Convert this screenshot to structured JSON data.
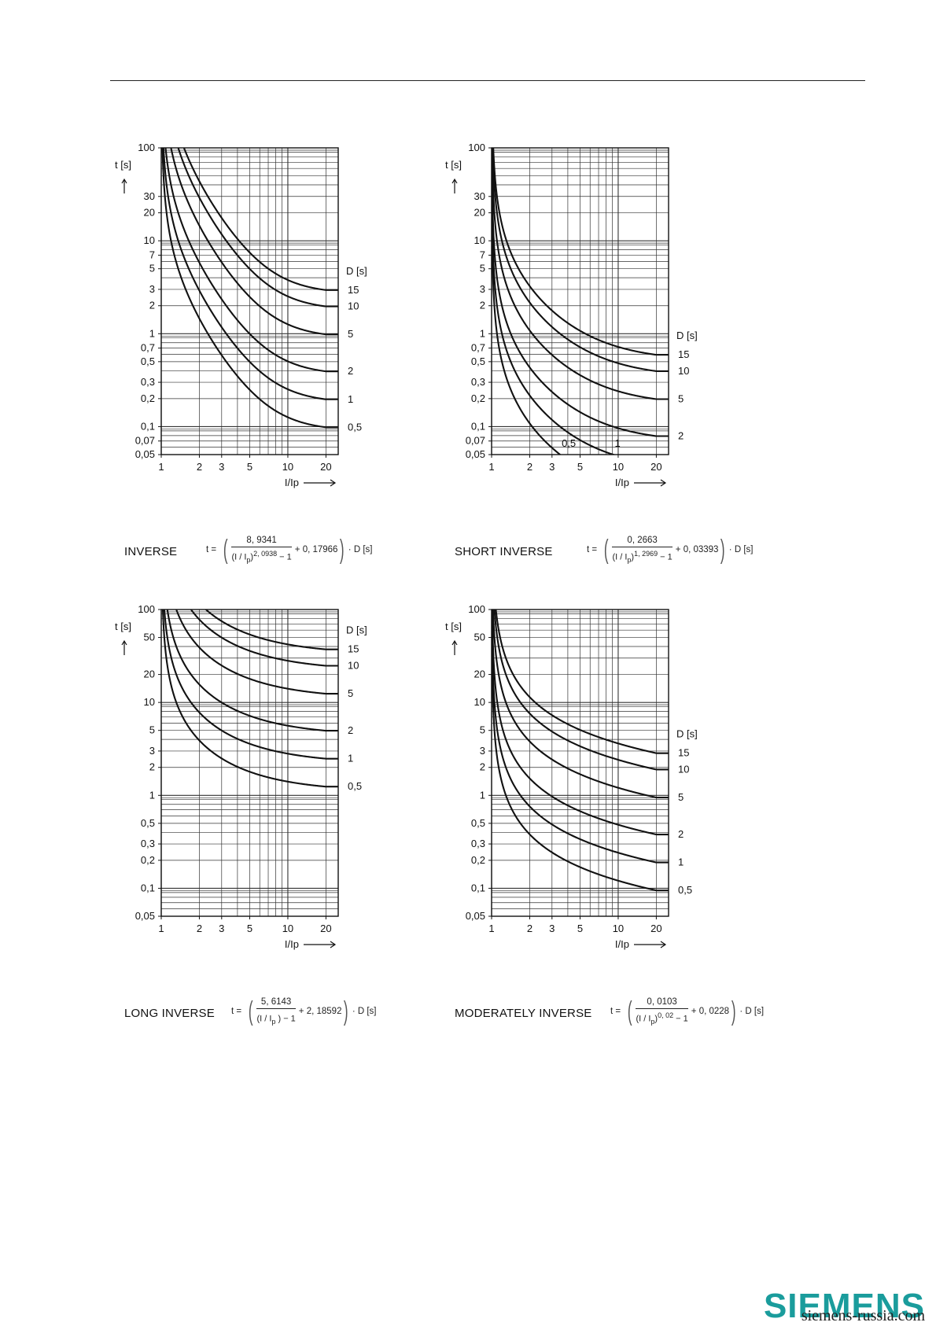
{
  "charts": [
    {
      "name": "INVERSE",
      "formula": {
        "prefix": "t =",
        "num": "8, 9341",
        "den_base": "(I / I",
        "den_sub": "p",
        "den_exp": "2, 0938",
        "den_tail": "− 1",
        "tail": "+ 0, 17966",
        "mult": "· D [s]"
      }
    },
    {
      "name": "SHORT INVERSE",
      "formula": {
        "prefix": "t =",
        "num": "0, 2663",
        "den_base": "(I / I",
        "den_sub": "p",
        "den_exp": "1, 2969",
        "den_tail": "− 1",
        "tail": "+ 0, 03393",
        "mult": "· D [s]"
      }
    },
    {
      "name": "LONG INVERSE",
      "formula": {
        "prefix": "t =",
        "num": "5, 6143",
        "den_base": "(I / I",
        "den_sub": "p",
        "den_exp": "",
        "den_tail": ") − 1",
        "tail": "+ 2, 18592",
        "mult": "· D [s]"
      }
    },
    {
      "name": "MODERATELY INVERSE",
      "formula": {
        "prefix": "t =",
        "num": "0, 0103",
        "den_base": "(I / I",
        "den_sub": "p",
        "den_exp": "0, 02",
        "den_tail": "− 1",
        "tail": "+ 0, 0228",
        "mult": "· D [s]"
      }
    }
  ],
  "chart_data": [
    {
      "type": "line",
      "title": "INVERSE",
      "xlabel": "I/Ip",
      "ylabel": "t [s]",
      "legend_title": "D [s]",
      "x_scale": "log",
      "y_scale": "log",
      "xlim": [
        1,
        25
      ],
      "ylim": [
        0.05,
        100
      ],
      "x_ticks": [
        1,
        2,
        3,
        5,
        10,
        20
      ],
      "x_tick_labels": [
        "1",
        "2",
        "3",
        "5",
        "10",
        "20"
      ],
      "y_ticks": [
        0.05,
        0.07,
        0.1,
        0.2,
        0.3,
        0.5,
        0.7,
        1,
        2,
        3,
        5,
        7,
        10,
        20,
        30,
        100
      ],
      "y_tick_labels": [
        "0,05",
        "0,07",
        "0,1",
        "0,2",
        "0,3",
        "0,5",
        "0,7",
        "1",
        "2",
        "3",
        "5",
        "7",
        "10",
        "20",
        "30",
        "100"
      ],
      "grid": true,
      "curve_params": {
        "a": 8.9341,
        "p": 2.0938,
        "b": 0.17966
      },
      "series": [
        {
          "name": "15",
          "D": 15
        },
        {
          "name": "10",
          "D": 10
        },
        {
          "name": "5",
          "D": 5
        },
        {
          "name": "2",
          "D": 2
        },
        {
          "name": "1",
          "D": 1
        },
        {
          "name": "0,5",
          "D": 0.5
        }
      ]
    },
    {
      "type": "line",
      "title": "SHORT INVERSE",
      "xlabel": "I/Ip",
      "ylabel": "t [s]",
      "legend_title": "D [s]",
      "x_scale": "log",
      "y_scale": "log",
      "xlim": [
        1,
        25
      ],
      "ylim": [
        0.05,
        100
      ],
      "x_ticks": [
        1,
        2,
        3,
        5,
        10,
        20
      ],
      "x_tick_labels": [
        "1",
        "2",
        "3",
        "5",
        "10",
        "20"
      ],
      "y_ticks": [
        0.05,
        0.07,
        0.1,
        0.2,
        0.3,
        0.5,
        0.7,
        1,
        2,
        3,
        5,
        7,
        10,
        20,
        30,
        100
      ],
      "y_tick_labels": [
        "0,05",
        "0,07",
        "0,1",
        "0,2",
        "0,3",
        "0,5",
        "0,7",
        "1",
        "2",
        "3",
        "5",
        "7",
        "10",
        "20",
        "30",
        "100"
      ],
      "grid": true,
      "curve_params": {
        "a": 0.2663,
        "p": 1.2969,
        "b": 0.03393
      },
      "series": [
        {
          "name": "15",
          "D": 15
        },
        {
          "name": "10",
          "D": 10
        },
        {
          "name": "5",
          "D": 5
        },
        {
          "name": "2",
          "D": 2
        },
        {
          "name": "1",
          "D": 1
        },
        {
          "name": "0,5",
          "D": 0.5
        }
      ]
    },
    {
      "type": "line",
      "title": "LONG INVERSE",
      "xlabel": "I/Ip",
      "ylabel": "t [s]",
      "legend_title": "D [s]",
      "x_scale": "log",
      "y_scale": "log",
      "xlim": [
        1,
        25
      ],
      "ylim": [
        0.05,
        100
      ],
      "x_ticks": [
        1,
        2,
        3,
        5,
        10,
        20
      ],
      "x_tick_labels": [
        "1",
        "2",
        "3",
        "5",
        "10",
        "20"
      ],
      "y_ticks": [
        0.05,
        0.1,
        0.2,
        0.3,
        0.5,
        1,
        2,
        3,
        5,
        10,
        20,
        50,
        100
      ],
      "y_tick_labels": [
        "0,05",
        "0,1",
        "0,2",
        "0,3",
        "0,5",
        "1",
        "2",
        "3",
        "5",
        "10",
        "20",
        "50",
        "100"
      ],
      "grid": true,
      "curve_params": {
        "a": 5.6143,
        "p": 1,
        "b": 2.18592
      },
      "series": [
        {
          "name": "15",
          "D": 15
        },
        {
          "name": "10",
          "D": 10
        },
        {
          "name": "5",
          "D": 5
        },
        {
          "name": "2",
          "D": 2
        },
        {
          "name": "1",
          "D": 1
        },
        {
          "name": "0,5",
          "D": 0.5
        }
      ]
    },
    {
      "type": "line",
      "title": "MODERATELY INVERSE",
      "xlabel": "I/Ip",
      "ylabel": "t [s]",
      "legend_title": "D [s]",
      "x_scale": "log",
      "y_scale": "log",
      "xlim": [
        1,
        25
      ],
      "ylim": [
        0.05,
        100
      ],
      "x_ticks": [
        1,
        2,
        3,
        5,
        10,
        20
      ],
      "x_tick_labels": [
        "1",
        "2",
        "3",
        "5",
        "10",
        "20"
      ],
      "y_ticks": [
        0.05,
        0.1,
        0.2,
        0.3,
        0.5,
        1,
        2,
        3,
        5,
        10,
        20,
        50,
        100
      ],
      "y_tick_labels": [
        "0,05",
        "0,1",
        "0,2",
        "0,3",
        "0,5",
        "1",
        "2",
        "3",
        "5",
        "10",
        "20",
        "50",
        "100"
      ],
      "grid": true,
      "curve_params": {
        "a": 0.0103,
        "p": 0.02,
        "b": 0.0228
      },
      "series": [
        {
          "name": "15",
          "D": 15
        },
        {
          "name": "10",
          "D": 10
        },
        {
          "name": "5",
          "D": 5
        },
        {
          "name": "2",
          "D": 2
        },
        {
          "name": "1",
          "D": 1
        },
        {
          "name": "0,5",
          "D": 0.5
        }
      ]
    }
  ],
  "footer": {
    "brand": "SIEMENS",
    "url": "siemens-russia.com"
  },
  "colors": {
    "ink": "#111111",
    "grid": "#333333",
    "brand": "#1a9c9c"
  }
}
